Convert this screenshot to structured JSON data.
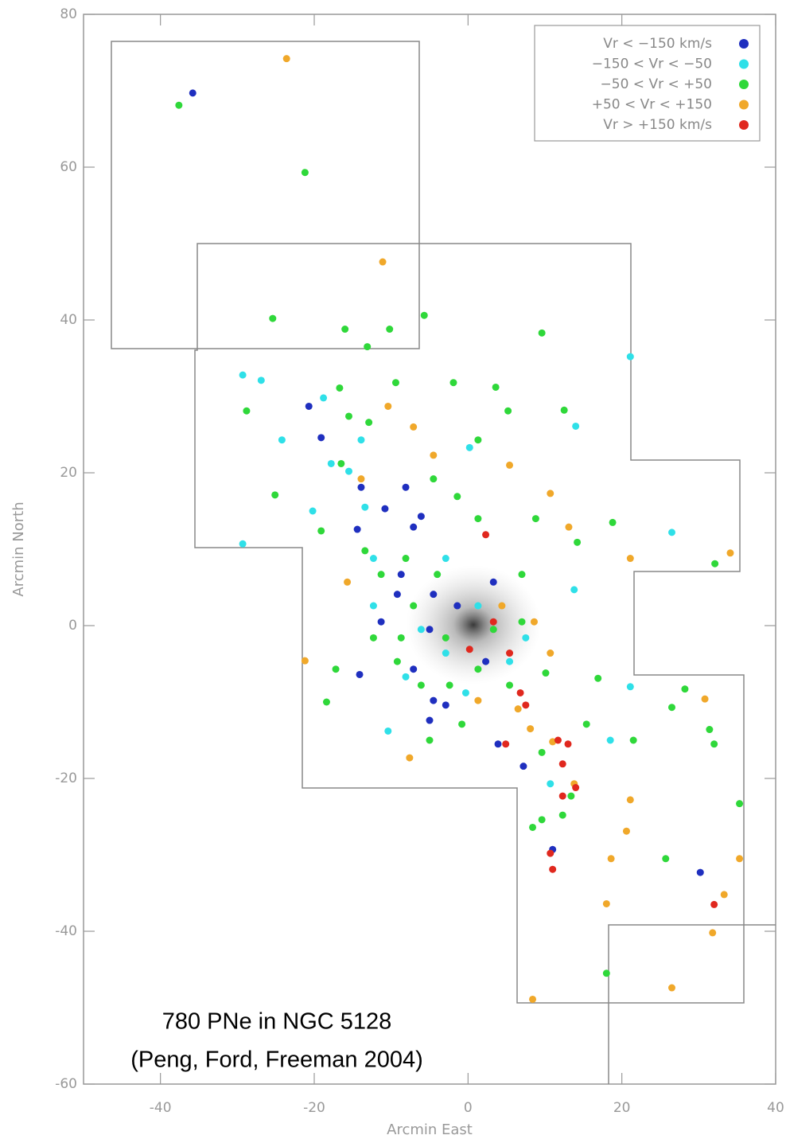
{
  "chart_data": {
    "type": "scatter",
    "xlabel": "Arcmin East",
    "ylabel": "Arcmin North",
    "annotations": [
      "780 PNe in NGC 5128",
      "(Peng, Ford, Freeman 2004)"
    ],
    "xlim": [
      -50,
      40
    ],
    "ylim": [
      -60,
      80
    ],
    "xticks": [
      -40,
      -20,
      0,
      20,
      40
    ],
    "yticks": [
      -60,
      -40,
      -20,
      0,
      20,
      40,
      60,
      80
    ],
    "legend": "upper right",
    "series": [
      {
        "name": "Vr < −150 km/s",
        "color": "#1f2fbf",
        "x": [
          -35.8,
          -20.7,
          -19.1,
          -13.9,
          -8.1,
          -10.8,
          -14.4,
          -6.1,
          -9.2,
          -4.5,
          -11.3,
          -5.0,
          -14.1,
          -7.1,
          -4.5,
          -2.9,
          3.9,
          7.2,
          11.0,
          30.2,
          -7.1,
          -8.7,
          -1.4,
          2.3,
          -5.0,
          3.3
        ],
        "y": [
          69.7,
          28.7,
          24.6,
          18.1,
          18.1,
          15.3,
          12.6,
          14.3,
          4.1,
          4.1,
          0.5,
          -0.5,
          -6.4,
          -5.7,
          -9.8,
          -10.4,
          -15.5,
          -18.4,
          -29.3,
          -32.3,
          12.9,
          6.7,
          2.6,
          -4.7,
          -12.4,
          5.7
        ]
      },
      {
        "name": "−150 < Vr < −50",
        "color": "#2fe0e8",
        "x": [
          -29.3,
          -26.9,
          -29.3,
          -24.2,
          -18.8,
          -20.2,
          -13.9,
          -13.4,
          -12.3,
          21.1,
          14.0,
          26.5,
          13.8,
          21.1,
          10.7,
          -10.4,
          -6.1,
          -2.9,
          1.3,
          5.4,
          -12.3,
          -8.1,
          -2.9,
          7.5,
          -15.5,
          -17.8,
          0.2,
          18.5,
          -0.3
        ],
        "y": [
          32.8,
          32.1,
          10.7,
          24.3,
          29.8,
          15.0,
          24.3,
          15.5,
          8.8,
          35.2,
          26.1,
          12.2,
          4.7,
          -8.0,
          -20.7,
          -13.8,
          -0.5,
          -3.6,
          2.6,
          -4.7,
          2.6,
          -6.7,
          8.8,
          -1.6,
          20.2,
          21.2,
          23.3,
          -15.0,
          -8.8
        ]
      },
      {
        "name": "−50 < Vr < +50",
        "color": "#2fd83a",
        "x": [
          -37.6,
          -21.2,
          -25.4,
          -16.0,
          -13.1,
          -10.2,
          -5.7,
          9.6,
          -28.8,
          -16.7,
          -9.4,
          -1.9,
          3.6,
          5.2,
          12.5,
          -15.5,
          -12.9,
          1.3,
          -16.5,
          -4.5,
          -1.4,
          1.3,
          8.8,
          14.2,
          18.8,
          32.1,
          -25.1,
          -19.1,
          -13.4,
          -11.3,
          -4.0,
          7.0,
          -7.1,
          -2.9,
          3.3,
          7.0,
          -9.2,
          -6.1,
          -2.4,
          1.3,
          5.4,
          10.1,
          16.9,
          -18.4,
          -17.2,
          26.5,
          28.2,
          31.4,
          32.0,
          35.3,
          21.5,
          15.4,
          9.6,
          13.4,
          12.3,
          8.4,
          9.6,
          25.7,
          18.0,
          -5.0,
          -0.8,
          -12.3,
          -8.1,
          -8.7
        ],
        "y": [
          68.1,
          59.3,
          40.2,
          38.8,
          36.5,
          38.8,
          40.6,
          38.3,
          28.1,
          31.1,
          31.8,
          31.8,
          31.2,
          28.1,
          28.2,
          27.4,
          26.6,
          24.3,
          21.2,
          19.2,
          16.9,
          14.0,
          14.0,
          10.9,
          13.5,
          8.1,
          17.1,
          12.4,
          9.8,
          6.7,
          6.7,
          6.7,
          2.6,
          -1.6,
          -0.5,
          0.5,
          -4.7,
          -7.8,
          -7.8,
          -5.7,
          -7.8,
          -6.2,
          -6.9,
          -10.0,
          -5.7,
          -10.7,
          -8.3,
          -13.6,
          -15.5,
          -23.3,
          -15.0,
          -12.9,
          -16.6,
          -22.3,
          -24.8,
          -26.4,
          -25.4,
          -30.5,
          -45.5,
          -15.0,
          -12.9,
          -1.6,
          8.8,
          -1.6
        ]
      },
      {
        "name": "+50 < Vr < +150",
        "color": "#f0a82a",
        "x": [
          -23.6,
          -11.1,
          -15.7,
          -21.2,
          -7.6,
          5.4,
          10.7,
          13.1,
          21.1,
          34.1,
          -10.4,
          -7.1,
          8.6,
          10.7,
          6.5,
          8.1,
          11.0,
          13.8,
          21.1,
          20.6,
          18.6,
          30.8,
          35.3,
          33.3,
          31.8,
          26.5,
          8.4,
          18.0,
          1.3,
          4.4,
          -13.9,
          -4.5
        ],
        "y": [
          74.2,
          47.6,
          5.7,
          -4.6,
          -17.3,
          21.0,
          17.3,
          12.9,
          8.8,
          9.5,
          28.7,
          26.0,
          0.5,
          -3.6,
          -10.9,
          -13.5,
          -15.2,
          -20.7,
          -22.8,
          -26.9,
          -30.5,
          -9.6,
          -30.5,
          -35.2,
          -40.2,
          -47.4,
          -48.9,
          -36.4,
          -9.8,
          2.6,
          19.2,
          22.3
        ]
      },
      {
        "name": "Vr > +150 km/s",
        "color": "#e0281e",
        "x": [
          2.3,
          6.8,
          7.5,
          4.9,
          11.7,
          13.0,
          12.3,
          12.3,
          14.0,
          10.7,
          11.0,
          32.0,
          5.4,
          0.2,
          3.3
        ],
        "y": [
          11.9,
          -8.8,
          -10.4,
          -15.5,
          -15.0,
          -15.5,
          -18.1,
          -22.3,
          -21.2,
          -29.8,
          -31.9,
          -36.5,
          -3.6,
          -3.1,
          0.5
        ]
      }
    ]
  }
}
